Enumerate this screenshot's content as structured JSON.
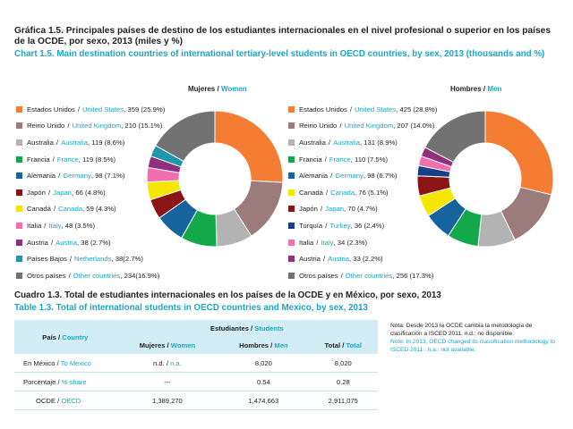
{
  "title_es": "Gráfica 1.5. Principales países de destino de los estudiantes internacionales en el nivel profesional o superior en los países de la OCDE, por sexo, 2013  (miles y %)",
  "title_en": "Chart 1.5. Main destination countries of international tertiary-level students in OECD countries, by sex, 2013 (thousands and %)",
  "chart_data": [
    {
      "type": "pie",
      "title_es": "Mujeres",
      "sep": "/",
      "title_en": "Women",
      "slices": [
        {
          "es": "Estados Unidos",
          "en": "United States",
          "value": 359,
          "pct": 25.9,
          "color": "#f57c33",
          "text": ", 359 (25.9%)"
        },
        {
          "es": "Reino Unido",
          "en": "United Kingdom",
          "value": 210,
          "pct": 15.1,
          "color": "#9c7b7b",
          "text": ", 210 (15.1%)"
        },
        {
          "es": "Australia",
          "en": "Australia",
          "value": 119,
          "pct": 8.6,
          "color": "#b3b3b3",
          "text": ", 119 (8.6%)"
        },
        {
          "es": "Francia",
          "en": "France",
          "value": 119,
          "pct": 8.5,
          "color": "#13a84a",
          "text": ", 119 (8.5%)"
        },
        {
          "es": "Alemania",
          "en": "Germany",
          "value": 98,
          "pct": 7.1,
          "color": "#16639d",
          "text": ", 98 (7.1%)"
        },
        {
          "es": "Japón",
          "en": "Japan",
          "value": 66,
          "pct": 4.8,
          "color": "#8b1414",
          "text": ", 66 (4.8%)"
        },
        {
          "es": "Canadá",
          "en": "Canada",
          "value": 59,
          "pct": 4.3,
          "color": "#f6e600",
          "text": ", 59 (4.3%)"
        },
        {
          "es": "Italia",
          "en": "Italy",
          "value": 48,
          "pct": 3.5,
          "color": "#f06fae",
          "text": ", 48 (3.5%)"
        },
        {
          "es": "Austria",
          "en": "Austria",
          "value": 38,
          "pct": 2.7,
          "color": "#8f2f7d",
          "text": ", 38 (2.7%)"
        },
        {
          "es": "Países Bajos",
          "en": "Netherlands",
          "value": 38,
          "pct": 2.7,
          "color": "#1c97ac",
          "text": ", 38(2.7%)"
        },
        {
          "es": "Otros países",
          "en": "Other countries",
          "value": 234,
          "pct": 16.9,
          "color": "#727272",
          "text": ", 234(16.9%)"
        }
      ]
    },
    {
      "type": "pie",
      "title_es": "Hombres",
      "sep": "/",
      "title_en": "Men",
      "slices": [
        {
          "es": "Estados Unidos",
          "en": "United States",
          "value": 425,
          "pct": 28.8,
          "color": "#f57c33",
          "text": ", 425 (28.8%)"
        },
        {
          "es": "Reino Unido",
          "en": "United Kingdom",
          "value": 207,
          "pct": 14.0,
          "color": "#9c7b7b",
          "text": ", 207 (14.0%)"
        },
        {
          "es": "Australia",
          "en": "Australia",
          "value": 131,
          "pct": 8.9,
          "color": "#b3b3b3",
          "text": ", 131 (8.9%)"
        },
        {
          "es": "Francia",
          "en": "France",
          "value": 110,
          "pct": 7.5,
          "color": "#13a84a",
          "text": ", 110 (7.5%)"
        },
        {
          "es": "Alemania",
          "en": "Germany",
          "value": 98,
          "pct": 6.7,
          "color": "#16639d",
          "text": ", 98 (6.7%)"
        },
        {
          "es": "Canadá",
          "en": "Canada",
          "value": 76,
          "pct": 5.1,
          "color": "#f6e600",
          "text": ", 76 (5.1%)"
        },
        {
          "es": "Japón",
          "en": "Japan",
          "value": 70,
          "pct": 4.7,
          "color": "#8b1414",
          "text": ", 70 (4.7%)"
        },
        {
          "es": "Turquía",
          "en": "Turkey",
          "value": 36,
          "pct": 2.4,
          "color": "#16408a",
          "text": ", 36 (2.4%)"
        },
        {
          "es": "Italia",
          "en": "Italy",
          "value": 34,
          "pct": 2.3,
          "color": "#f06fae",
          "text": ", 34 (2.3%)"
        },
        {
          "es": "Austria",
          "en": "Austria",
          "value": 33,
          "pct": 2.2,
          "color": "#8f2f7d",
          "text": ", 33 (2.2%)"
        },
        {
          "es": "Otros países",
          "en": "Other countries",
          "value": 256,
          "pct": 17.3,
          "color": "#727272",
          "text": ", 256 (17.3%)"
        }
      ]
    }
  ],
  "table": {
    "title_es": "Cuadro 1.3. Total de estudiantes internacionales en los países de la OCDE y en México, por sexo, 2013",
    "title_en": "Table 1.3. Total of international students in OECD countries and Mexico, by sex, 2013",
    "country_es": "País",
    "country_en": "Country",
    "students_es": "Estudiantes",
    "students_en": "Students",
    "women_es": "Mujeres",
    "women_en": "Women",
    "men_es": "Hombres",
    "men_en": "Men",
    "total_es": "Total",
    "total_en": "Total",
    "sep": "/",
    "rows": [
      {
        "label_es": "En México",
        "label_en": "To Mexico",
        "women": "n.d.",
        "women_en": "n.a.",
        "men": "8,020",
        "total": "8,020"
      },
      {
        "label_es": "Porcentaje",
        "label_en": "% share",
        "women": "---",
        "women_en": "",
        "men": "0.54",
        "total": "0.28"
      },
      {
        "label_es": "OCDE",
        "label_en": "OECD",
        "women": "1,389,270",
        "women_en": "",
        "men": "1,474,663",
        "total": "2,911,075"
      }
    ]
  },
  "note_es": "Nota: Desde 2013 la OCDE cambia la metodología de clasificación a ISCED 2011. n.d.: no disponible.",
  "note_en": "Note: In 2013, OECD changed its classification methodology to ISCED 2011 . n.a.: not available."
}
